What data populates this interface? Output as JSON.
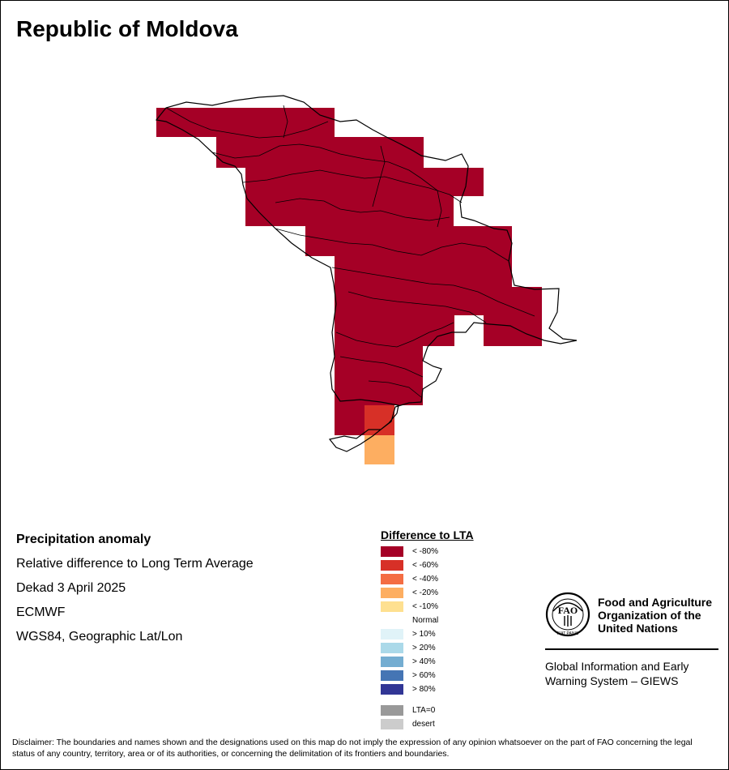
{
  "title": "Republic of Moldova",
  "info": {
    "heading": "Precipitation anomaly",
    "line1": "Relative difference to Long Term Average",
    "line2": "Dekad 3 April 2025",
    "line3": "ECMWF",
    "line4": "WGS84, Geographic Lat/Lon"
  },
  "legend": {
    "title": "Difference to LTA",
    "normal_label": "Normal",
    "items": [
      {
        "label": "< -80%",
        "color": "#a50026"
      },
      {
        "label": "< -60%",
        "color": "#d73027"
      },
      {
        "label": "< -40%",
        "color": "#f46d43"
      },
      {
        "label": "< -20%",
        "color": "#fdae61"
      },
      {
        "label": "< -10%",
        "color": "#fee090"
      },
      {
        "label": "> 10%",
        "color": "#e0f3f8"
      },
      {
        "label": "> 20%",
        "color": "#abd9e9"
      },
      {
        "label": "> 40%",
        "color": "#74add1"
      },
      {
        "label": "> 60%",
        "color": "#4575b4"
      },
      {
        "label": "> 80%",
        "color": "#313695"
      },
      {
        "label": "LTA=0",
        "color": "#999999"
      },
      {
        "label": "desert",
        "color": "#cccccc"
      }
    ]
  },
  "fao": {
    "name": "Food and Agriculture Organization of the United Nations",
    "logo_letters": "FAO",
    "motto": "FIAT PANIS",
    "system": "Global Information and Early Warning System – GIEWS"
  },
  "disclaimer": "Disclaimer: The boundaries and names shown and the designations used on this map do not imply the expression of any opinion whatsoever on the part of FAO concerning the legal status of any country, territory, area or of its authorities, or concerning the delimitation of its frontiers and boundaries.",
  "map": {
    "anomaly_colors": {
      "dry_80": "#a50026",
      "dry_60": "#d73027",
      "dry_20": "#fdae61"
    }
  }
}
